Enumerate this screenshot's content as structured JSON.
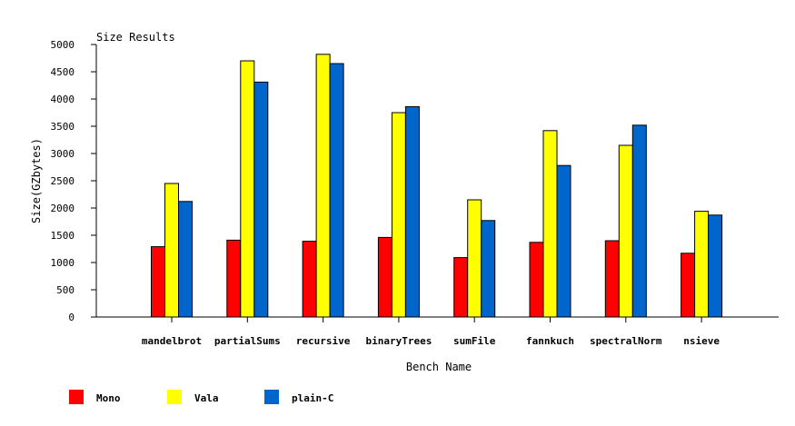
{
  "chart_data": {
    "type": "bar",
    "title": "Size Results",
    "xlabel": "Bench Name",
    "ylabel": "Size(GZbytes)",
    "ylim": [
      0,
      5000
    ],
    "yticks": [
      0,
      500,
      1000,
      1500,
      2000,
      2500,
      3000,
      3500,
      4000,
      4500,
      5000
    ],
    "categories": [
      "mandelbrot",
      "partialSums",
      "recursive",
      "binaryTrees",
      "sumFile",
      "fannkuch",
      "spectralNorm",
      "nsieve"
    ],
    "series": [
      {
        "name": "Mono",
        "color": "#ff0000",
        "values": [
          1290,
          1410,
          1390,
          1460,
          1090,
          1370,
          1400,
          1170
        ]
      },
      {
        "name": "Vala",
        "color": "#ffff00",
        "values": [
          2450,
          4700,
          4820,
          3750,
          2150,
          3420,
          3150,
          1940
        ]
      },
      {
        "name": "plain-C",
        "color": "#0066cc",
        "values": [
          2120,
          4310,
          4650,
          3860,
          1770,
          2780,
          3520,
          1870
        ]
      }
    ],
    "grid": false,
    "legend_position": "bottom-left"
  }
}
